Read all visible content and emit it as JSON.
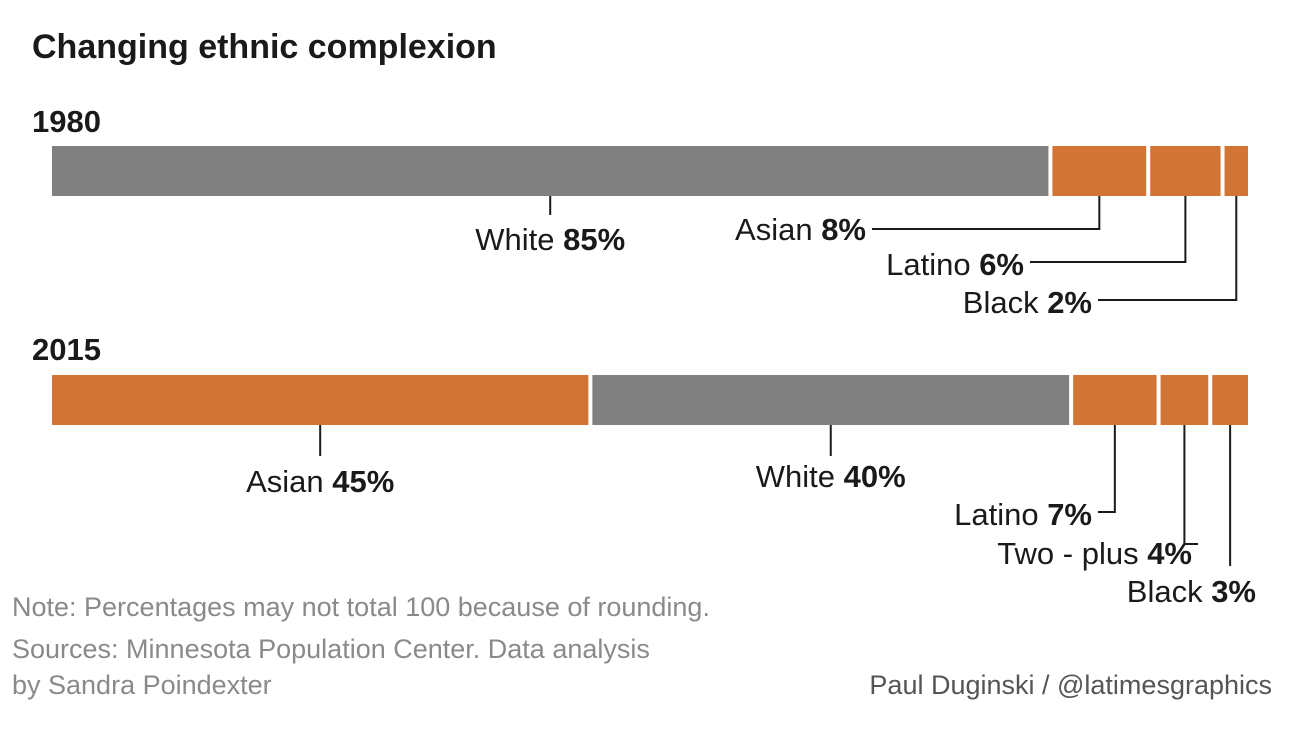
{
  "chart_data": {
    "type": "bar",
    "orientation": "horizontal",
    "stacked": true,
    "title": "Changing ethnic complexion",
    "groups": [
      {
        "label": "1980",
        "segments": [
          {
            "name": "White",
            "value": 85,
            "value_label": "85%",
            "color": "#808080"
          },
          {
            "name": "Asian",
            "value": 8,
            "value_label": "8%",
            "color": "#d27434"
          },
          {
            "name": "Latino",
            "value": 6,
            "value_label": "6%",
            "color": "#d27434"
          },
          {
            "name": "Black",
            "value": 2,
            "value_label": "2%",
            "color": "#d27434"
          }
        ]
      },
      {
        "label": "2015",
        "segments": [
          {
            "name": "Asian",
            "value": 45,
            "value_label": "45%",
            "color": "#d27434"
          },
          {
            "name": "White",
            "value": 40,
            "value_label": "40%",
            "color": "#808080"
          },
          {
            "name": "Latino",
            "value": 7,
            "value_label": "7%",
            "color": "#d27434"
          },
          {
            "name": "Two-plus",
            "value": 4,
            "value_label": "4%",
            "color": "#d27434"
          },
          {
            "name": "Black",
            "value": 3,
            "value_label": "3%",
            "color": "#d27434"
          }
        ]
      }
    ],
    "note": "Note: Percentages may not total 100 because of rounding.",
    "sources": [
      "Sources: Minnesota Population Center. Data analysis",
      "by Sandra Poindexter"
    ],
    "credit": "Paul Duginski / @latimesgraphics"
  }
}
